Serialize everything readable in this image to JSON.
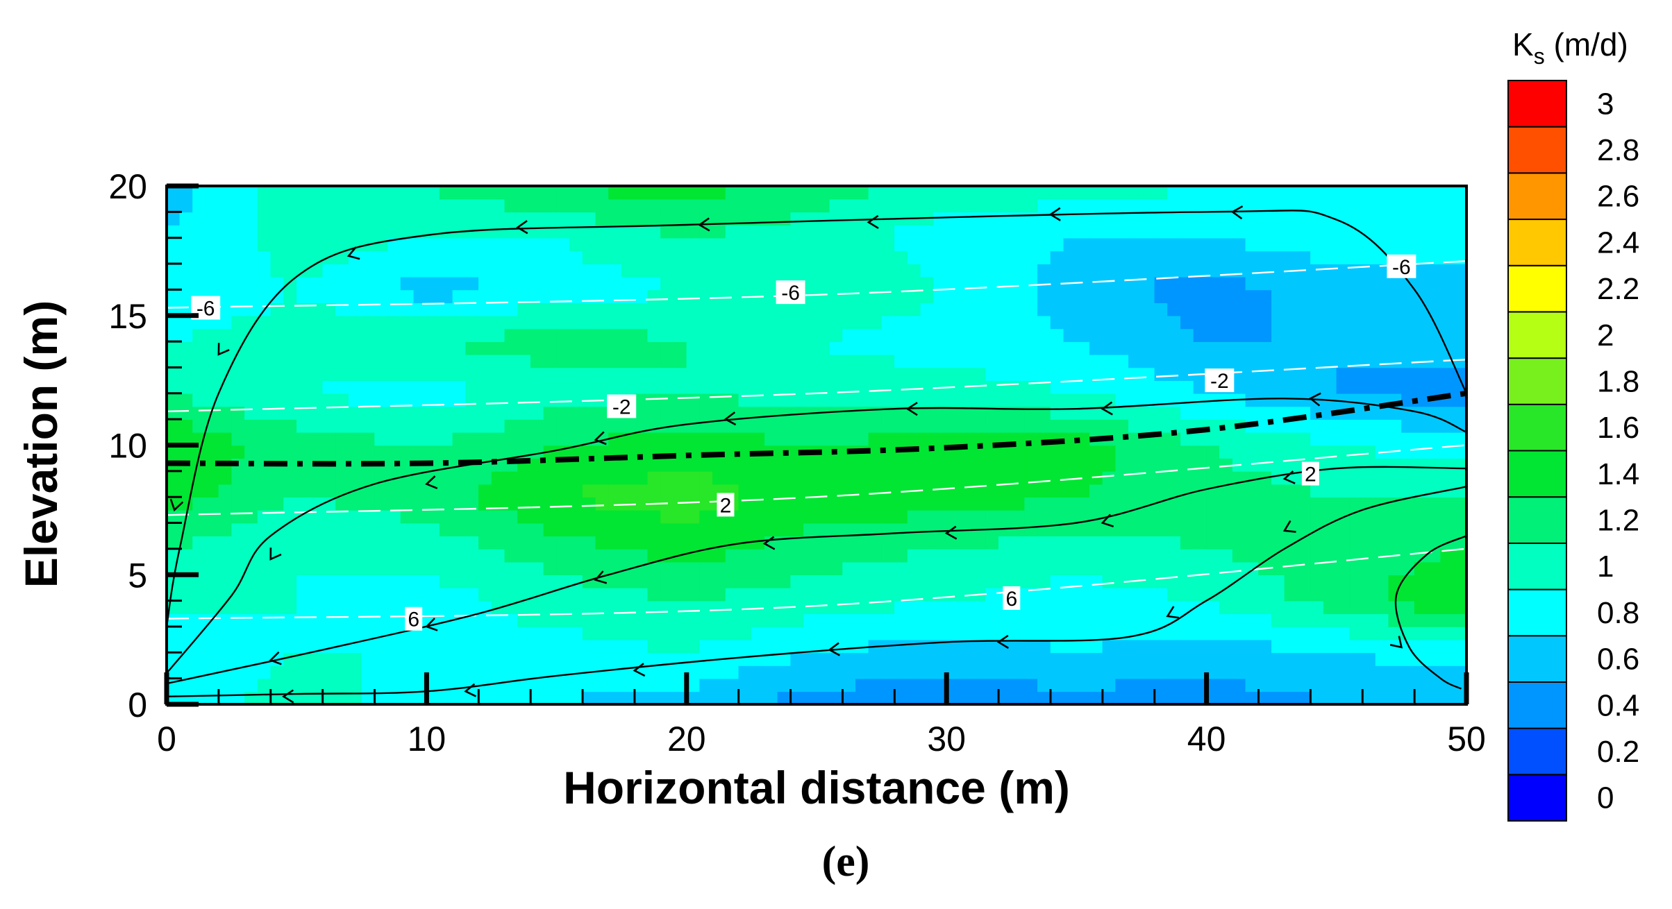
{
  "chart_data": {
    "type": "heatmap",
    "title": "",
    "xlabel": "Horizontal distance (m)",
    "ylabel": "Elevation (m)",
    "xlim": [
      0,
      50
    ],
    "ylim": [
      0,
      20
    ],
    "x_ticks": [
      "0",
      "10",
      "20",
      "30",
      "40",
      "50"
    ],
    "y_ticks": [
      "0",
      "5",
      "10",
      "15",
      "20"
    ],
    "panel_label": "(e)",
    "colorbar": {
      "title_main": "K",
      "title_sub": "s",
      "title_unit": " (m/d)",
      "levels": [
        0,
        0.2,
        0.4,
        0.6,
        0.8,
        1,
        1.2,
        1.4,
        1.6,
        1.8,
        2,
        2.2,
        2.4,
        2.6,
        2.8,
        3
      ],
      "labels": [
        "0",
        "0.2",
        "0.4",
        "0.6",
        "0.8",
        "1",
        "1.2",
        "1.4",
        "1.6",
        "1.8",
        "2",
        "2.2",
        "2.4",
        "2.6",
        "2.8",
        "3"
      ],
      "colors": [
        "#0000ff",
        "#0050ff",
        "#0096ff",
        "#00c8ff",
        "#00ffff",
        "#00ffc0",
        "#00f078",
        "#00e632",
        "#28e628",
        "#78f01e",
        "#b4ff14",
        "#ffff00",
        "#ffc800",
        "#ff9600",
        "#ff5000",
        "#ff0000"
      ]
    },
    "field": {
      "x": [
        0,
        5,
        10,
        15,
        20,
        25,
        30,
        35,
        40,
        45,
        50
      ],
      "y": [
        0,
        2,
        4,
        6,
        8,
        10,
        12,
        14,
        16,
        18,
        20
      ],
      "ks": [
        [
          0.9,
          1.1,
          0.9,
          0.8,
          0.7,
          0.5,
          0.5,
          0.5,
          0.5,
          0.6,
          0.6
        ],
        [
          0.8,
          1.0,
          1.0,
          0.9,
          1.0,
          0.8,
          0.7,
          0.8,
          0.7,
          0.8,
          0.9
        ],
        [
          1.1,
          1.0,
          0.9,
          1.1,
          1.2,
          1.1,
          1.0,
          0.9,
          1.0,
          1.3,
          1.6
        ],
        [
          1.2,
          1.0,
          1.1,
          1.3,
          1.5,
          1.3,
          1.2,
          1.1,
          1.2,
          1.3,
          1.4
        ],
        [
          1.5,
          1.2,
          1.3,
          1.6,
          1.7,
          1.5,
          1.5,
          1.4,
          1.3,
          1.2,
          1.2
        ],
        [
          1.6,
          1.3,
          1.2,
          1.4,
          1.5,
          1.4,
          1.5,
          1.5,
          1.2,
          1.0,
          0.9
        ],
        [
          1.2,
          1.0,
          0.9,
          1.1,
          1.2,
          1.1,
          1.1,
          1.0,
          0.8,
          0.6,
          0.5
        ],
        [
          1.0,
          1.1,
          1.2,
          1.3,
          1.2,
          1.0,
          0.9,
          0.8,
          0.6,
          0.6,
          0.7
        ],
        [
          0.8,
          1.0,
          0.7,
          0.9,
          1.0,
          1.2,
          1.0,
          0.7,
          0.5,
          0.7,
          0.8
        ],
        [
          0.8,
          1.1,
          1.0,
          1.0,
          1.2,
          1.1,
          0.9,
          0.8,
          0.8,
          0.9,
          0.8
        ],
        [
          0.7,
          1.1,
          1.2,
          1.4,
          1.5,
          1.3,
          1.1,
          1.1,
          1.0,
          0.9,
          0.8
        ]
      ]
    },
    "head_contours": [
      {
        "label": "-6",
        "points": [
          [
            0,
            15.3
          ],
          [
            25,
            15.8
          ],
          [
            50,
            17.1
          ]
        ],
        "label_at": [
          [
            1.5,
            15.3
          ],
          [
            24,
            15.9
          ],
          [
            47.5,
            16.9
          ]
        ]
      },
      {
        "label": "-2",
        "points": [
          [
            0,
            11.3
          ],
          [
            25,
            12.0
          ],
          [
            50,
            13.3
          ]
        ],
        "label_at": [
          [
            17.5,
            11.5
          ],
          [
            40.5,
            12.5
          ]
        ]
      },
      {
        "label": "2",
        "points": [
          [
            0,
            7.3
          ],
          [
            25,
            8.0
          ],
          [
            50,
            10.0
          ]
        ],
        "label_at": [
          [
            21.5,
            7.7
          ],
          [
            44,
            8.9
          ]
        ]
      },
      {
        "label": "6",
        "points": [
          [
            0,
            3.3
          ],
          [
            25,
            3.8
          ],
          [
            50,
            6.0
          ]
        ],
        "label_at": [
          [
            9.5,
            3.3
          ],
          [
            32.5,
            4.1
          ]
        ]
      }
    ],
    "water_table": [
      [
        0,
        9.3
      ],
      [
        10,
        9.3
      ],
      [
        20,
        9.6
      ],
      [
        30,
        9.9
      ],
      [
        40,
        10.6
      ],
      [
        50,
        12.0
      ]
    ],
    "streamlines": [
      {
        "points": [
          [
            50,
            12
          ],
          [
            48,
            16
          ],
          [
            45,
            18.7
          ],
          [
            40,
            19
          ],
          [
            20,
            18.5
          ],
          [
            10,
            18.1
          ],
          [
            5,
            16.5
          ],
          [
            2,
            12
          ],
          [
            0.5,
            6
          ],
          [
            0,
            3
          ]
        ],
        "arrows_at": [
          [
            41,
            19.0
          ],
          [
            34,
            18.9
          ],
          [
            27,
            18.6
          ],
          [
            20.5,
            18.5
          ],
          [
            13.5,
            18.4
          ],
          [
            7,
            17.3
          ],
          [
            2,
            13.5
          ],
          [
            0.3,
            7.5
          ]
        ]
      },
      {
        "points": [
          [
            50,
            10.5
          ],
          [
            48,
            11.3
          ],
          [
            43,
            11.8
          ],
          [
            35,
            11.4
          ],
          [
            28,
            11.4
          ],
          [
            20,
            10.8
          ],
          [
            15,
            9.8
          ],
          [
            8,
            8.5
          ],
          [
            4,
            6.5
          ],
          [
            2.5,
            4.2
          ],
          [
            0,
            1.2
          ]
        ],
        "arrows_at": [
          [
            44,
            11.8
          ],
          [
            36,
            11.4
          ],
          [
            28.5,
            11.4
          ],
          [
            21.5,
            11.0
          ],
          [
            16.5,
            10.2
          ],
          [
            10,
            8.5
          ],
          [
            4,
            5.6
          ]
        ]
      },
      {
        "points": [
          [
            50,
            9.1
          ],
          [
            45,
            9.1
          ],
          [
            40,
            8.3
          ],
          [
            35,
            7.0
          ],
          [
            28,
            6.6
          ],
          [
            22,
            6.2
          ],
          [
            17,
            5.0
          ],
          [
            12,
            3.5
          ],
          [
            6,
            2.1
          ],
          [
            0,
            0.8
          ]
        ],
        "arrows_at": [
          [
            43,
            8.7
          ],
          [
            36,
            7.0
          ],
          [
            30,
            6.6
          ],
          [
            23,
            6.2
          ],
          [
            16.5,
            4.8
          ],
          [
            10,
            3.0
          ],
          [
            4,
            1.7
          ]
        ]
      },
      {
        "points": [
          [
            50,
            8.4
          ],
          [
            46,
            7.5
          ],
          [
            43,
            6.0
          ],
          [
            40,
            4.0
          ],
          [
            37,
            2.6
          ],
          [
            30,
            2.4
          ],
          [
            22,
            1.8
          ],
          [
            15,
            1.1
          ],
          [
            10,
            0.5
          ],
          [
            5,
            0.4
          ],
          [
            0,
            0.3
          ]
        ],
        "arrows_at": [
          [
            43,
            6.7
          ],
          [
            38.5,
            3.4
          ],
          [
            32,
            2.4
          ],
          [
            25.5,
            2.1
          ],
          [
            18,
            1.3
          ],
          [
            11.5,
            0.5
          ],
          [
            4.5,
            0.3
          ]
        ]
      },
      {
        "points": [
          [
            50,
            6.5
          ],
          [
            48.5,
            5.8
          ],
          [
            47.3,
            4.2
          ],
          [
            47.8,
            2.2
          ],
          [
            49,
            1.0
          ],
          [
            49.8,
            0.6
          ]
        ],
        "arrows_at": [
          [
            47.5,
            2.2
          ]
        ]
      }
    ]
  }
}
